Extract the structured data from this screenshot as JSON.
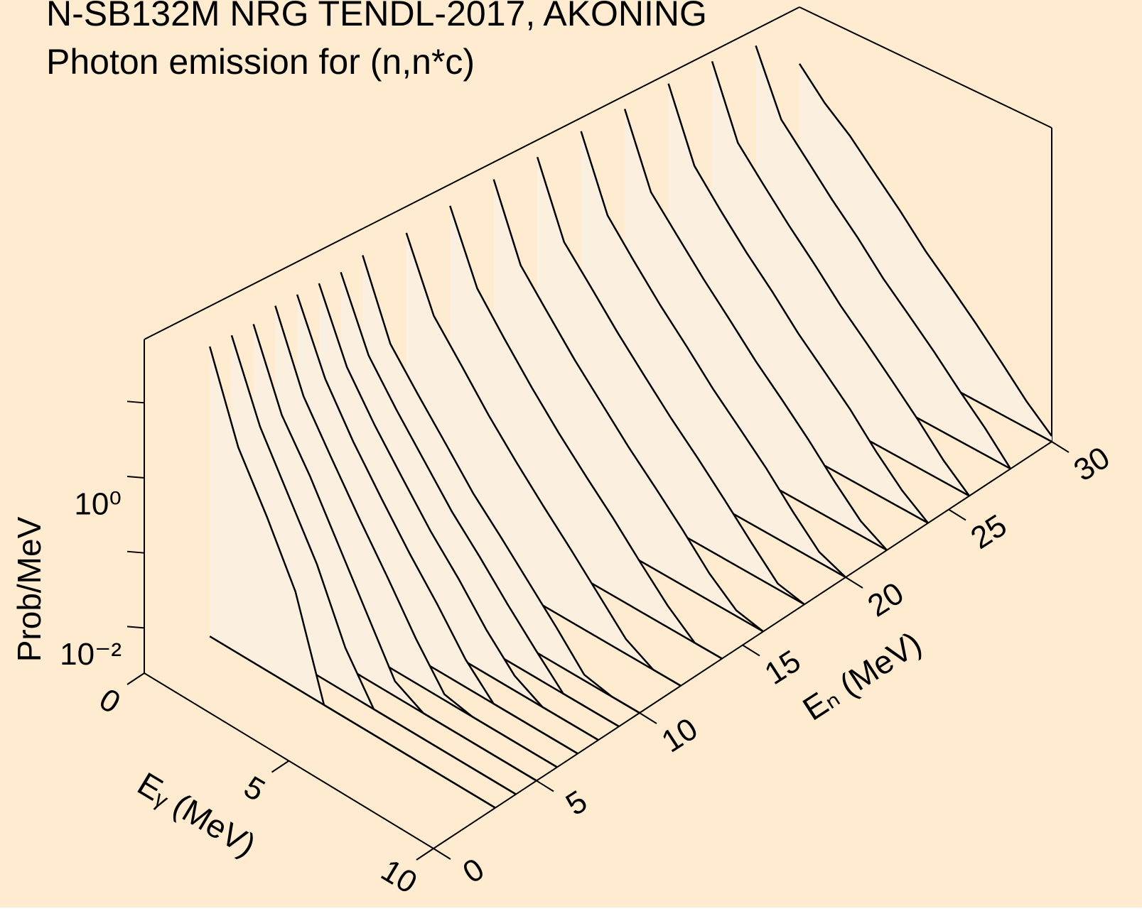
{
  "chart_data": {
    "type": "waterfall3d",
    "title": "N-SB132M NRG TENDL-2017, AKONING",
    "subtitle": "Photon emission for (n,n*c)",
    "xlabel": "Eᵧ (MeV)",
    "ylabel": "Eₙ (MeV)",
    "zlabel": "Prob/MeV",
    "background": "#feebd0",
    "fill": "#fbefe0",
    "color": "#000000",
    "xlim": [
      0,
      10
    ],
    "xticks": [
      0,
      5,
      10
    ],
    "ylim": [
      0,
      30
    ],
    "yticks": [
      0,
      5,
      10,
      15,
      20,
      25,
      30
    ],
    "zlim": [
      0.0025,
      70
    ],
    "zlog": true,
    "zticks": [
      {
        "value": 0.01,
        "label": "10⁻²"
      },
      {
        "value": 1,
        "label": "10⁰"
      }
    ],
    "zminor": [
      0.1,
      10
    ],
    "x": [
      0,
      1,
      2,
      3,
      4,
      5,
      6,
      7,
      8,
      9,
      10
    ],
    "series": [
      {
        "en": 3,
        "values": [
          20,
          1.5,
          0.3,
          0.05,
          0.0025,
          0.0025,
          0.0025,
          0.0025,
          0.0025,
          0.0025,
          0.0025
        ]
      },
      {
        "en": 4,
        "values": [
          20,
          2,
          0.4,
          0.08,
          0.01,
          0.0025,
          0.0025,
          0.0025,
          0.0025,
          0.0025,
          0.0025
        ]
      },
      {
        "en": 5,
        "values": [
          20,
          2,
          0.5,
          0.1,
          0.02,
          0.004,
          0.0025,
          0.0025,
          0.0025,
          0.0025,
          0.0025
        ]
      },
      {
        "en": 6,
        "values": [
          25,
          2.5,
          0.6,
          0.15,
          0.04,
          0.01,
          0.003,
          0.0025,
          0.0025,
          0.0025,
          0.0025
        ]
      },
      {
        "en": 7,
        "values": [
          25,
          3,
          0.7,
          0.2,
          0.06,
          0.02,
          0.006,
          0.0025,
          0.0025,
          0.0025,
          0.0025
        ]
      },
      {
        "en": 8,
        "values": [
          25,
          3,
          0.8,
          0.25,
          0.08,
          0.03,
          0.01,
          0.004,
          0.0025,
          0.0025,
          0.0025
        ]
      },
      {
        "en": 9,
        "values": [
          25,
          3,
          0.9,
          0.3,
          0.1,
          0.04,
          0.015,
          0.006,
          0.0025,
          0.0025,
          0.0025
        ]
      },
      {
        "en": 10,
        "values": [
          30,
          3,
          1,
          0.35,
          0.12,
          0.05,
          0.02,
          0.008,
          0.003,
          0.0025,
          0.0025
        ]
      },
      {
        "en": 12,
        "values": [
          30,
          3.5,
          1.2,
          0.4,
          0.15,
          0.06,
          0.025,
          0.01,
          0.004,
          0.0025,
          0.0025
        ]
      },
      {
        "en": 14,
        "values": [
          35,
          4,
          1.3,
          0.45,
          0.17,
          0.07,
          0.03,
          0.012,
          0.005,
          0.0025,
          0.0025
        ]
      },
      {
        "en": 16,
        "values": [
          40,
          4,
          1.4,
          0.5,
          0.2,
          0.08,
          0.035,
          0.015,
          0.006,
          0.003,
          0.0025
        ]
      },
      {
        "en": 18,
        "values": [
          40,
          4,
          1.5,
          0.55,
          0.22,
          0.09,
          0.04,
          0.017,
          0.007,
          0.003,
          0.0025
        ]
      },
      {
        "en": 20,
        "values": [
          45,
          4.5,
          1.6,
          0.6,
          0.25,
          0.1,
          0.045,
          0.02,
          0.008,
          0.0035,
          0.0025
        ]
      },
      {
        "en": 22,
        "values": [
          45,
          4.5,
          1.7,
          0.65,
          0.27,
          0.11,
          0.05,
          0.022,
          0.009,
          0.004,
          0.0025
        ]
      },
      {
        "en": 24,
        "values": [
          50,
          5,
          1.8,
          0.7,
          0.3,
          0.12,
          0.055,
          0.025,
          0.01,
          0.0045,
          0.0025
        ]
      },
      {
        "en": 26,
        "values": [
          50,
          5,
          1.9,
          0.75,
          0.32,
          0.13,
          0.06,
          0.027,
          0.012,
          0.005,
          0.0025
        ]
      },
      {
        "en": 28,
        "values": [
          40,
          5,
          2,
          0.8,
          0.35,
          0.14,
          0.065,
          0.03,
          0.013,
          0.006,
          0.0025
        ]
      },
      {
        "en": 30,
        "values": [
          10,
          4,
          2,
          0.85,
          0.37,
          0.15,
          0.07,
          0.032,
          0.014,
          0.006,
          0.003
        ]
      }
    ]
  }
}
